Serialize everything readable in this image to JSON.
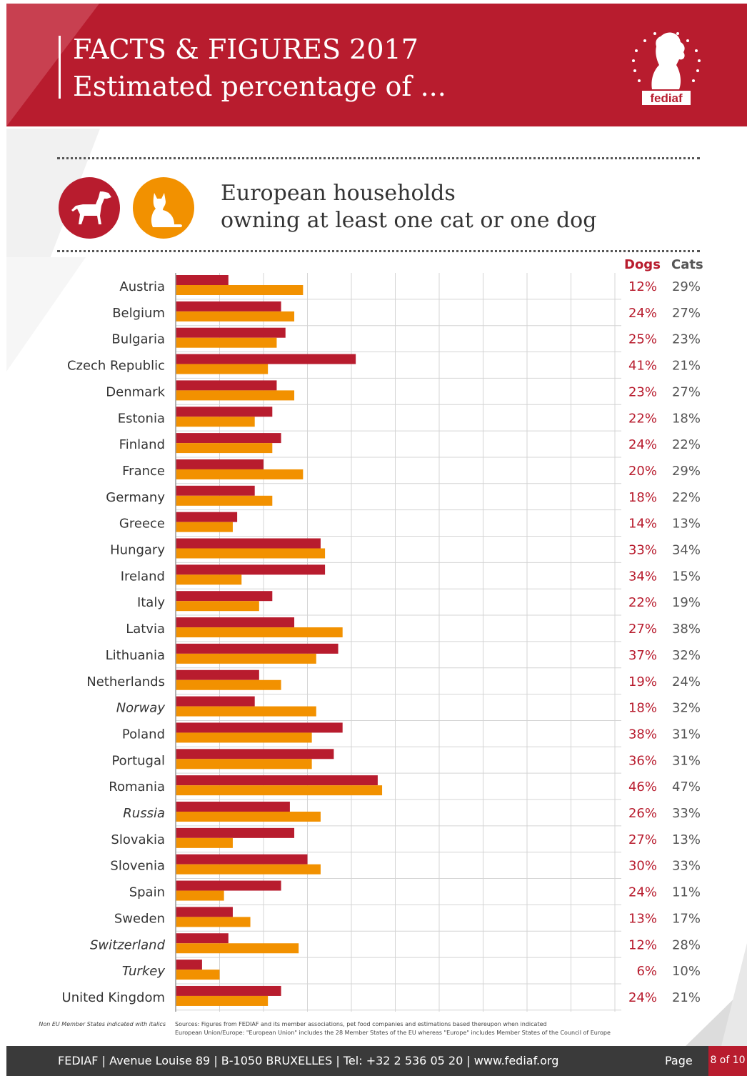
{
  "header": {
    "title_line1": "FACTS & FIGURES 2017",
    "title_line2": "Estimated percentage of ...",
    "logo_text": "fediaf",
    "logo_icon": "dog-silhouette-with-stars-icon"
  },
  "subtitle": {
    "line1": "European households",
    "line2": "owning at least one cat or one dog",
    "dog_icon": "dog-icon",
    "cat_icon": "cat-icon"
  },
  "colors": {
    "dogs": "#b81c2e",
    "cats": "#f29100",
    "header": "#b81c2e",
    "footer": "#3a3a3a"
  },
  "chart_data": {
    "type": "bar",
    "orientation": "horizontal",
    "xlim": [
      0,
      100
    ],
    "grid": true,
    "legend": "none",
    "series_headers": [
      "Dogs",
      "Cats"
    ],
    "series": [
      {
        "name": "Dogs",
        "values": [
          12,
          24,
          25,
          41,
          23,
          22,
          24,
          20,
          18,
          14,
          33,
          34,
          22,
          27,
          37,
          19,
          18,
          38,
          36,
          46,
          26,
          27,
          30,
          24,
          13,
          12,
          6,
          24
        ]
      },
      {
        "name": "Cats",
        "values": [
          29,
          27,
          23,
          21,
          27,
          18,
          22,
          29,
          22,
          13,
          34,
          15,
          19,
          38,
          32,
          24,
          32,
          31,
          31,
          47,
          33,
          13,
          33,
          11,
          17,
          28,
          10,
          21
        ]
      }
    ],
    "categories": [
      "Austria",
      "Belgium",
      "Bulgaria",
      "Czech Republic",
      "Denmark",
      "Estonia",
      "Finland",
      "France",
      "Germany",
      "Greece",
      "Hungary",
      "Ireland",
      "Italy",
      "Latvia",
      "Lithuania",
      "Netherlands",
      "Norway",
      "Poland",
      "Portugal",
      "Romania",
      "Russia",
      "Slovakia",
      "Slovenia",
      "Spain",
      "Sweden",
      "Switzerland",
      "Turkey",
      "United Kingdom"
    ],
    "non_eu_italic": [
      "Norway",
      "Russia",
      "Switzerland",
      "Turkey"
    ],
    "dog_labels": [
      "12%",
      "24%",
      "25%",
      "41%",
      "23%",
      "22%",
      "24%",
      "20%",
      "18%",
      "14%",
      "33%",
      "34%",
      "22%",
      "27%",
      "37%",
      "19%",
      "18%",
      "38%",
      "36%",
      "46%",
      "26%",
      "27%",
      "30%",
      "24%",
      "13%",
      "12%",
      "6%",
      "24%"
    ],
    "cat_labels": [
      "29%",
      "27%",
      "23%",
      "21%",
      "27%",
      "18%",
      "22%",
      "29%",
      "22%",
      "13%",
      "34%",
      "15%",
      "19%",
      "38%",
      "32%",
      "24%",
      "32%",
      "31%",
      "31%",
      "47%",
      "33%",
      "13%",
      "33%",
      "11%",
      "17%",
      "28%",
      "10%",
      "21%"
    ]
  },
  "notes": {
    "left": "Non EU Member States indicated with italics",
    "sources": "Sources: Figures from FEDIAF and its member associations, pet food companies and estimations based thereupon when indicated",
    "definition": "European Union/Europe:  \"European Union\" includes the 28 Member States of the EU whereas \"Europe\" includes Member States of the Council of Europe"
  },
  "footer": {
    "text": "FEDIAF | Avenue Louise 89 | B-1050 BRUXELLES | Tel: +32 2 536 05 20 | www.fediaf.org",
    "page_label": "Page",
    "page_number": "8 of 10"
  }
}
